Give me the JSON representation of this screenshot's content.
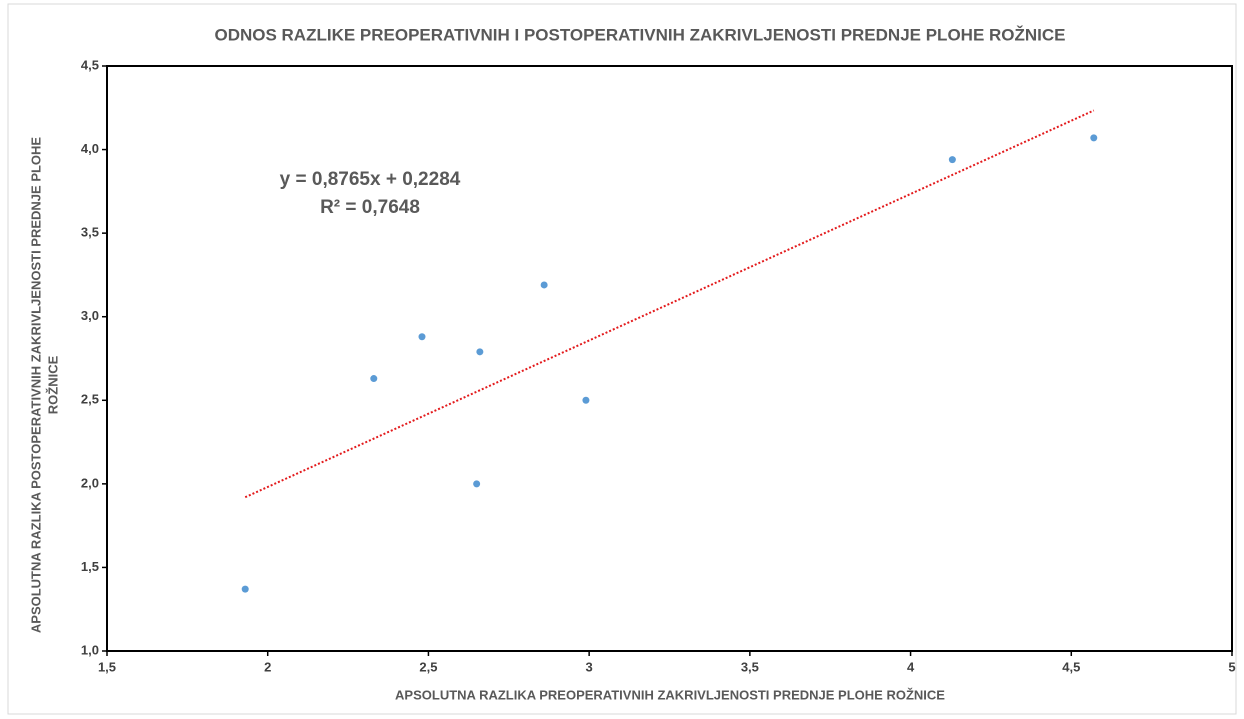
{
  "chart_data": {
    "type": "scatter",
    "title": "ODNOS RAZLIKE PREOPERATIVNIH I POSTOPERATIVNIH ZAKRIVLJENOSTI PREDNJE PLOHE ROŽNICE",
    "xlabel": "APSOLUTNA RAZLIKA  PREOPERATIVNIH ZAKRIVLJENOSTI PREDNJE PLOHE ROŽNICE",
    "ylabel": [
      "APSOLUTNA RAZLIKA POSTOPERATIVNIH ZAKRIVLJENOSTI PREDNJE PLOHE",
      "ROŽNICE"
    ],
    "x": [
      1.93,
      2.33,
      2.48,
      2.66,
      2.65,
      2.86,
      2.99,
      4.13,
      4.57
    ],
    "values": [
      1.37,
      2.63,
      2.88,
      2.79,
      2.0,
      3.19,
      2.5,
      3.94,
      4.07
    ],
    "color": "#5b9bd5",
    "xlim": [
      1.5,
      5
    ],
    "xticks": [
      {
        "value": 1.5,
        "label": "1,5"
      },
      2,
      {
        "value": 2.5,
        "label": "2,5"
      },
      3,
      {
        "value": 3.5,
        "label": "3,5"
      },
      4,
      {
        "value": 4.5,
        "label": "4,5"
      },
      5
    ],
    "ylim": [
      1.0,
      4.5
    ],
    "yticks": [
      {
        "value": 1.0,
        "label": "1,0"
      },
      {
        "value": 1.5,
        "label": "1,5"
      },
      {
        "value": 2.0,
        "label": "2,0"
      },
      {
        "value": 2.5,
        "label": "2,5"
      },
      {
        "value": 3.0,
        "label": "3,0"
      },
      {
        "value": 3.5,
        "label": "3,5"
      },
      {
        "value": 4.0,
        "label": "4,0"
      },
      {
        "value": 4.5,
        "label": "4,5"
      }
    ],
    "grid": false,
    "trendline": {
      "slope": 0.8765,
      "intercept": 0.2284,
      "color": "#e31a1c",
      "label": "y = 0,8765x + 0,2284",
      "r2_label": "R² = 0,7648"
    }
  }
}
